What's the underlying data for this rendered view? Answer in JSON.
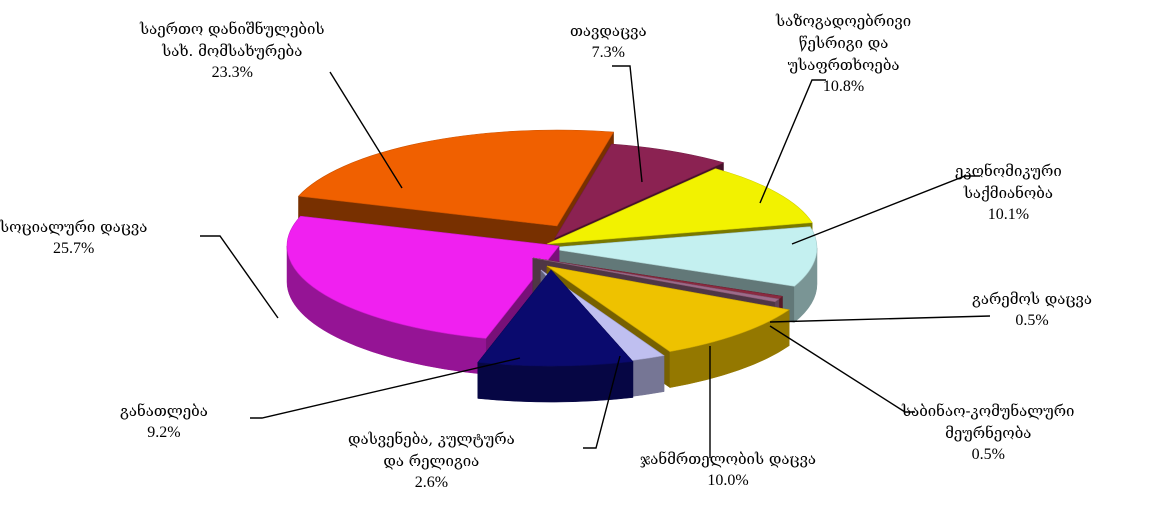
{
  "chart_data": {
    "type": "pie",
    "style": "3d-exploded",
    "slices": [
      {
        "label": [
          "თავდაცვა"
        ],
        "value": 7.3,
        "value_label": "7.3%",
        "color": "#8B2252"
      },
      {
        "label": [
          "საზოგადოებრივი",
          "წესრიგი და",
          "უსაფრთხოება"
        ],
        "value": 10.8,
        "value_label": "10.8%",
        "color": "#F2F200"
      },
      {
        "label": [
          "ეკონომიკური",
          "საქმიანობა"
        ],
        "value": 10.1,
        "value_label": "10.1%",
        "color": "#C4F0F0"
      },
      {
        "label": [
          "გარემოს დაცვა"
        ],
        "value": 0.5,
        "value_label": "0.5%",
        "color": "#8B2A40"
      },
      {
        "label": [
          "საბინაო-კომუნალური",
          "მეურნეობა"
        ],
        "value": 0.5,
        "value_label": "0.5%",
        "color": "#9D6B8A"
      },
      {
        "label": [
          "ჯანმრთელობის დაცვა"
        ],
        "value": 10.0,
        "value_label": "10.0%",
        "color": "#EEC200"
      },
      {
        "label": [
          "დასვენება, კულტურა",
          "და რელიგია"
        ],
        "value": 2.6,
        "value_label": "2.6%",
        "color": "#BFBFF0"
      },
      {
        "label": [
          "განათლება"
        ],
        "value": 9.2,
        "value_label": "9.2%",
        "color": "#0A0A6E"
      },
      {
        "label": [
          "სოციალური დაცვა"
        ],
        "value": 25.7,
        "value_label": "25.7%",
        "color": "#F020F0"
      },
      {
        "label": [
          "საერთო დანიშნულების",
          "სახ. მომსახურება"
        ],
        "value": 23.3,
        "value_label": "23.3%",
        "color": "#F06000"
      }
    ]
  }
}
